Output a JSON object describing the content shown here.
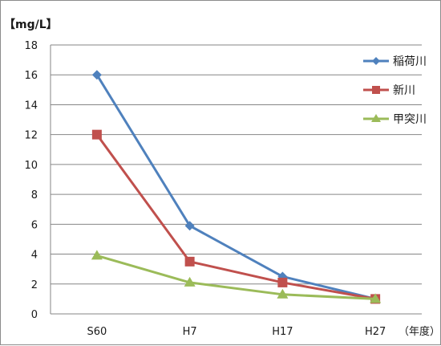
{
  "chart_data": {
    "type": "line",
    "y_unit_label": "【mg/L】",
    "x_unit_label": "（年度）",
    "categories": [
      "S60",
      "H7",
      "H17",
      "H27"
    ],
    "ylim": [
      0,
      18
    ],
    "ytick_step": 2,
    "yticks": [
      "0",
      "2",
      "4",
      "6",
      "8",
      "10",
      "12",
      "14",
      "16",
      "18"
    ],
    "grid": true,
    "legend_position": "top-right",
    "series": [
      {
        "name": "稲荷川",
        "values": [
          16.0,
          5.9,
          2.5,
          1.0
        ],
        "color": "#4f81bd",
        "marker": "diamond"
      },
      {
        "name": "新川",
        "values": [
          12.0,
          3.5,
          2.1,
          1.0
        ],
        "color": "#c0504d",
        "marker": "square"
      },
      {
        "name": "甲突川",
        "values": [
          3.9,
          2.1,
          1.3,
          1.0
        ],
        "color": "#9bbb59",
        "marker": "triangle"
      }
    ]
  }
}
